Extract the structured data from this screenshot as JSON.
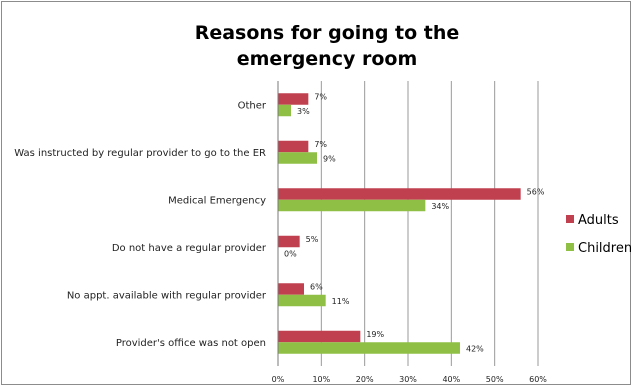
{
  "chart_data": {
    "type": "bar",
    "orientation": "horizontal",
    "title_lines": [
      "Reasons for going to the",
      "emergency room"
    ],
    "categories": [
      "Other",
      "Was instructed by regular provider to go to the ER",
      "Medical Emergency",
      "Do not have a regular provider",
      "No appt. available with regular provider",
      "Provider's office was not open"
    ],
    "series": [
      {
        "name": "Adults",
        "color": "#c0404f",
        "values": [
          7,
          7,
          56,
          5,
          6,
          19
        ],
        "labels": [
          "7%",
          "7%",
          "56%",
          "5%",
          "6%",
          "19%"
        ]
      },
      {
        "name": "Children",
        "color": "#8fbf45",
        "values": [
          3,
          9,
          34,
          0,
          11,
          42
        ],
        "labels": [
          "3%",
          "9%",
          "34%",
          "0%",
          "11%",
          "42%"
        ]
      }
    ],
    "xlim": [
      0,
      60
    ],
    "xticks": [
      0,
      10,
      20,
      30,
      40,
      50,
      60
    ],
    "xtick_labels": [
      "0%",
      "10%",
      "20%",
      "30%",
      "40%",
      "50%",
      "60%"
    ],
    "grid": true,
    "legend_position": "right"
  }
}
